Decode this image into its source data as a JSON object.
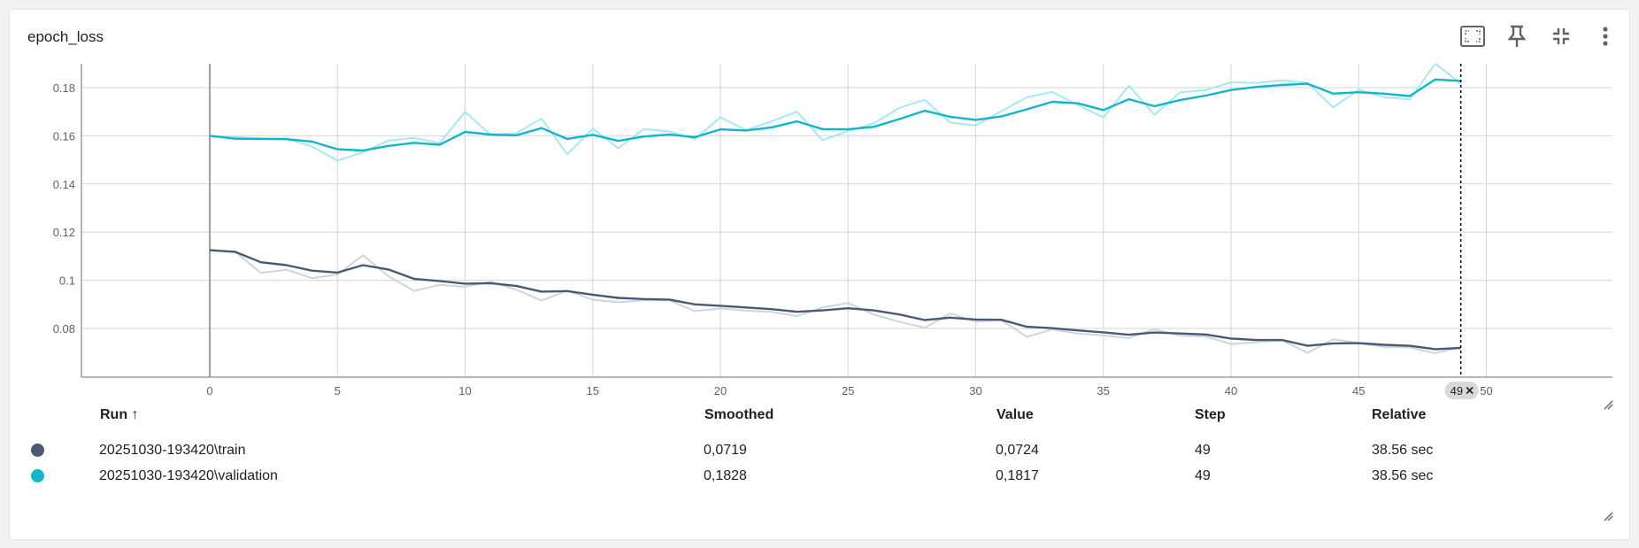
{
  "card": {
    "title": "epoch_loss"
  },
  "toolbar": {
    "icons": [
      "fullscreen-icon",
      "pin-icon",
      "collapse-icon",
      "more-vert-icon"
    ]
  },
  "chart_data": {
    "type": "line",
    "title": "epoch_loss",
    "xlabel": "",
    "ylabel": "",
    "xlim": [
      -5,
      55
    ],
    "ylim": [
      0.06,
      0.19
    ],
    "x_ticks": [
      0,
      5,
      10,
      15,
      20,
      25,
      30,
      35,
      40,
      45,
      50
    ],
    "x_tick_labels": [
      "0",
      "5",
      "10",
      "15",
      "20",
      "25",
      "30",
      "35",
      "40",
      "45",
      "50"
    ],
    "y_ticks": [
      0.08,
      0.1,
      0.12,
      0.14,
      0.16,
      0.18
    ],
    "y_tick_labels": [
      "0.08",
      "0.1",
      "0.12",
      "0.14",
      "0.16",
      "0.18"
    ],
    "grid": true,
    "hover_step": 49,
    "hover_label": "49",
    "series": [
      {
        "name": "20251030-193420\\train",
        "color": "#4a5a74",
        "raw_color": "#cfd4df",
        "raw": [
          0.1125,
          0.1118,
          0.1031,
          0.1044,
          0.1009,
          0.1024,
          0.1104,
          0.1017,
          0.0956,
          0.0981,
          0.0973,
          0.0994,
          0.0961,
          0.0916,
          0.0957,
          0.0919,
          0.0909,
          0.0917,
          0.0917,
          0.0872,
          0.0883,
          0.0874,
          0.0869,
          0.0851,
          0.0887,
          0.0906,
          0.0858,
          0.0828,
          0.0803,
          0.0862,
          0.0828,
          0.0835,
          0.0765,
          0.0796,
          0.0779,
          0.0771,
          0.076,
          0.0797,
          0.077,
          0.0767,
          0.0735,
          0.0743,
          0.075,
          0.0699,
          0.0755,
          0.0739,
          0.0723,
          0.0721,
          0.0697,
          0.0724
        ],
        "smoothed": [
          0.1125,
          0.1118,
          0.1075,
          0.1063,
          0.104,
          0.1032,
          0.1063,
          0.1045,
          0.1006,
          0.0997,
          0.0986,
          0.0988,
          0.0977,
          0.0953,
          0.0955,
          0.094,
          0.0927,
          0.0922,
          0.092,
          0.09,
          0.0894,
          0.0887,
          0.088,
          0.0869,
          0.0875,
          0.0884,
          0.0875,
          0.0858,
          0.0835,
          0.0845,
          0.0837,
          0.0836,
          0.0807,
          0.0801,
          0.0792,
          0.0784,
          0.0774,
          0.0783,
          0.0779,
          0.0775,
          0.0758,
          0.0752,
          0.0752,
          0.0728,
          0.0738,
          0.0739,
          0.0732,
          0.0728,
          0.0714,
          0.0719
        ]
      },
      {
        "name": "20251030-193420\\validation",
        "color": "#12b5cb",
        "raw_color": "#a8e8f2",
        "raw": [
          0.16,
          0.1595,
          0.1589,
          0.1589,
          0.1556,
          0.1497,
          0.1531,
          0.158,
          0.1591,
          0.157,
          0.1699,
          0.1605,
          0.161,
          0.1672,
          0.1523,
          0.163,
          0.1548,
          0.1628,
          0.1618,
          0.1586,
          0.1676,
          0.1624,
          0.166,
          0.17,
          0.1582,
          0.162,
          0.1651,
          0.1715,
          0.175,
          0.1655,
          0.1643,
          0.1702,
          0.176,
          0.1782,
          0.1728,
          0.1676,
          0.1808,
          0.1687,
          0.178,
          0.179,
          0.1822,
          0.182,
          0.183,
          0.182,
          0.1718,
          0.1792,
          0.176,
          0.1751,
          0.19,
          0.1817
        ],
        "smoothed": [
          0.16,
          0.1588,
          0.1587,
          0.1586,
          0.1576,
          0.1544,
          0.1539,
          0.1558,
          0.1571,
          0.1563,
          0.1616,
          0.1605,
          0.1602,
          0.1632,
          0.1587,
          0.1604,
          0.1579,
          0.1597,
          0.1605,
          0.1594,
          0.1627,
          0.1622,
          0.1635,
          0.166,
          0.1628,
          0.1627,
          0.1637,
          0.1669,
          0.1704,
          0.1679,
          0.1666,
          0.168,
          0.171,
          0.1741,
          0.1735,
          0.1707,
          0.1752,
          0.1723,
          0.1748,
          0.1767,
          0.179,
          0.1803,
          0.1811,
          0.1816,
          0.1775,
          0.1781,
          0.1775,
          0.1765,
          0.1834,
          0.1828
        ]
      }
    ]
  },
  "table": {
    "headers": {
      "run": "Run ↑",
      "smoothed": "Smoothed",
      "value": "Value",
      "step": "Step",
      "relative": "Relative"
    },
    "rows": [
      {
        "color": "#4a5a74",
        "run": "20251030-193420\\train",
        "smoothed": "0,0719",
        "value": "0,0724",
        "step": "49",
        "relative": "38.56 sec"
      },
      {
        "color": "#12b5cb",
        "run": "20251030-193420\\validation",
        "smoothed": "0,1828",
        "value": "0,1817",
        "step": "49",
        "relative": "38.56 sec"
      }
    ]
  }
}
